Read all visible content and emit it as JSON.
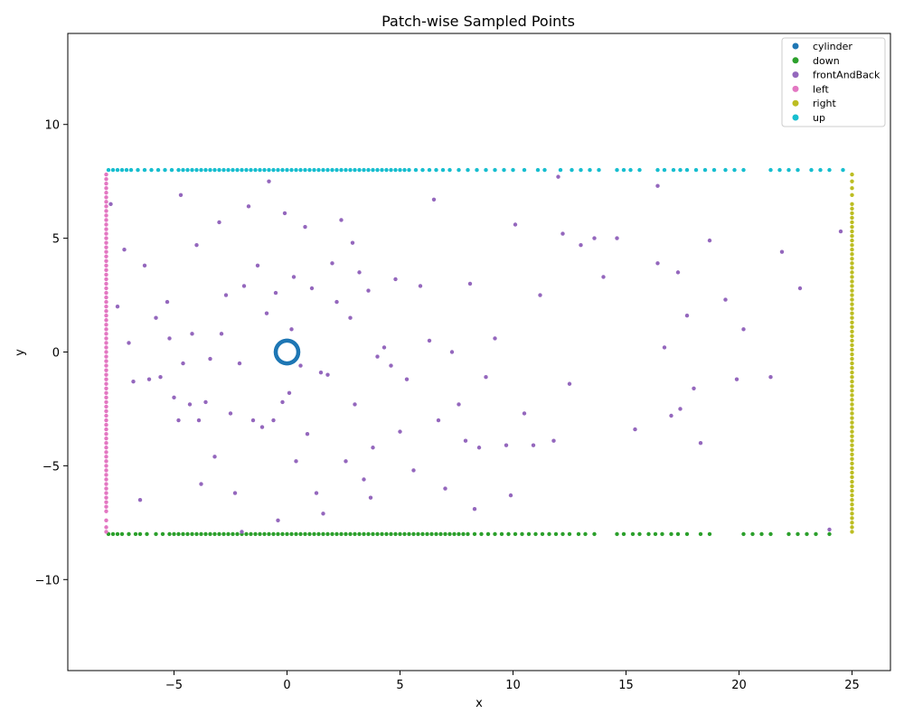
{
  "chart_data": {
    "type": "scatter",
    "title": "Patch-wise Sampled Points",
    "xlabel": "x",
    "ylabel": "y",
    "xlim": [
      -9.7,
      26.7
    ],
    "ylim": [
      -14.0,
      14.0
    ],
    "xticks": [
      -5,
      0,
      5,
      10,
      15,
      20,
      25
    ],
    "yticks": [
      -10,
      -5,
      0,
      5,
      10
    ],
    "grid": false,
    "legend": "top-right",
    "domain_box": {
      "x_min": -8,
      "x_max": 25,
      "y_min": -8,
      "y_max": 8
    },
    "series": [
      {
        "name": "cylinder",
        "color": "#1f77b4",
        "shape": "circle",
        "center": [
          0,
          0
        ],
        "radius": 0.5,
        "count": 120
      },
      {
        "name": "down",
        "color": "#2ca02c",
        "shape": "line",
        "y": -8,
        "x_range": [
          -8,
          24
        ],
        "x": [
          -7.9,
          -7.7,
          -7.5,
          -7.3,
          -7.0,
          -6.7,
          -6.5,
          -6.2,
          -5.8,
          -5.5,
          -5.2,
          -5.0,
          -4.8,
          -4.6,
          -4.4,
          -4.2,
          -4.0,
          -3.8,
          -3.6,
          -3.4,
          -3.2,
          -3.0,
          -2.8,
          -2.6,
          -2.4,
          -2.2,
          -2.0,
          -1.8,
          -1.6,
          -1.4,
          -1.2,
          -1.0,
          -0.8,
          -0.6,
          -0.4,
          -0.2,
          0.0,
          0.2,
          0.4,
          0.6,
          0.8,
          1.0,
          1.2,
          1.4,
          1.6,
          1.8,
          2.0,
          2.2,
          2.4,
          2.6,
          2.8,
          3.0,
          3.2,
          3.4,
          3.6,
          3.8,
          4.0,
          4.2,
          4.4,
          4.6,
          4.8,
          5.0,
          5.2,
          5.4,
          5.6,
          5.8,
          6.0,
          6.2,
          6.4,
          6.6,
          6.8,
          7.0,
          7.2,
          7.4,
          7.6,
          7.8,
          8.0,
          8.3,
          8.6,
          8.9,
          9.2,
          9.5,
          9.8,
          10.1,
          10.4,
          10.7,
          11.0,
          11.3,
          11.6,
          11.9,
          12.2,
          12.5,
          12.9,
          13.2,
          13.6,
          14.6,
          14.9,
          15.3,
          15.6,
          16.0,
          16.3,
          16.6,
          17.0,
          17.3,
          17.7,
          18.3,
          18.7,
          20.2,
          20.6,
          21.0,
          21.4,
          22.2,
          22.6,
          23.0,
          23.4,
          24.0
        ]
      },
      {
        "name": "frontAndBack",
        "color": "#9467bd",
        "shape": "scatter",
        "points": [
          [
            -7.8,
            6.5
          ],
          [
            -7.5,
            2.0
          ],
          [
            -7.2,
            4.5
          ],
          [
            -7.0,
            0.4
          ],
          [
            -6.8,
            -1.3
          ],
          [
            -6.5,
            -6.5
          ],
          [
            -6.3,
            3.8
          ],
          [
            -6.1,
            -1.2
          ],
          [
            -5.8,
            1.5
          ],
          [
            -5.6,
            -1.1
          ],
          [
            -5.3,
            2.2
          ],
          [
            -5.2,
            0.6
          ],
          [
            -5.0,
            -2.0
          ],
          [
            -4.8,
            -3.0
          ],
          [
            -4.7,
            6.9
          ],
          [
            -4.6,
            -0.5
          ],
          [
            -4.3,
            -2.3
          ],
          [
            -4.2,
            0.8
          ],
          [
            -4.0,
            4.7
          ],
          [
            -3.9,
            -3.0
          ],
          [
            -3.8,
            -5.8
          ],
          [
            -3.6,
            -2.2
          ],
          [
            -3.4,
            -0.3
          ],
          [
            -3.2,
            -4.6
          ],
          [
            -3.0,
            5.7
          ],
          [
            -2.9,
            0.8
          ],
          [
            -2.7,
            2.5
          ],
          [
            -2.5,
            -2.7
          ],
          [
            -2.3,
            -6.2
          ],
          [
            -2.1,
            -0.5
          ],
          [
            -1.9,
            2.9
          ],
          [
            -1.7,
            6.4
          ],
          [
            -1.5,
            -3.0
          ],
          [
            -1.3,
            3.8
          ],
          [
            -1.1,
            -3.3
          ],
          [
            -0.9,
            1.7
          ],
          [
            -0.8,
            7.5
          ],
          [
            -0.6,
            -3.0
          ],
          [
            -0.5,
            2.6
          ],
          [
            -0.4,
            -7.4
          ],
          [
            -0.2,
            -2.2
          ],
          [
            -0.1,
            6.1
          ],
          [
            0.1,
            -1.8
          ],
          [
            0.3,
            3.3
          ],
          [
            0.4,
            -4.8
          ],
          [
            0.6,
            -0.6
          ],
          [
            0.8,
            5.5
          ],
          [
            0.9,
            -3.6
          ],
          [
            1.1,
            2.8
          ],
          [
            1.3,
            -6.2
          ],
          [
            1.5,
            -0.9
          ],
          [
            1.6,
            -7.1
          ],
          [
            1.8,
            -1.0
          ],
          [
            2.0,
            3.9
          ],
          [
            2.2,
            2.2
          ],
          [
            2.4,
            5.8
          ],
          [
            2.6,
            -4.8
          ],
          [
            2.8,
            1.5
          ],
          [
            3.0,
            -2.3
          ],
          [
            3.2,
            3.5
          ],
          [
            3.4,
            -5.6
          ],
          [
            3.6,
            2.7
          ],
          [
            3.8,
            -4.2
          ],
          [
            4.0,
            -0.2
          ],
          [
            4.3,
            0.2
          ],
          [
            4.6,
            -0.6
          ],
          [
            4.8,
            3.2
          ],
          [
            5.0,
            -3.5
          ],
          [
            5.3,
            -1.2
          ],
          [
            5.6,
            -5.2
          ],
          [
            5.9,
            2.9
          ],
          [
            6.3,
            0.5
          ],
          [
            6.5,
            6.7
          ],
          [
            6.7,
            -3.0
          ],
          [
            7.0,
            -6.0
          ],
          [
            7.3,
            0.0
          ],
          [
            7.6,
            -2.3
          ],
          [
            7.9,
            -3.9
          ],
          [
            8.1,
            3.0
          ],
          [
            8.5,
            -4.2
          ],
          [
            8.8,
            -1.1
          ],
          [
            9.2,
            0.6
          ],
          [
            9.7,
            -4.1
          ],
          [
            10.1,
            5.6
          ],
          [
            10.5,
            -2.7
          ],
          [
            10.9,
            -4.1
          ],
          [
            11.2,
            2.5
          ],
          [
            11.8,
            -3.9
          ],
          [
            12.2,
            5.2
          ],
          [
            12.5,
            -1.4
          ],
          [
            13.0,
            4.7
          ],
          [
            13.6,
            5.0
          ],
          [
            14.0,
            3.3
          ],
          [
            14.6,
            5.0
          ],
          [
            15.4,
            -3.4
          ],
          [
            16.4,
            3.9
          ],
          [
            16.7,
            0.2
          ],
          [
            17.0,
            -2.8
          ],
          [
            17.3,
            3.5
          ],
          [
            17.7,
            1.6
          ],
          [
            18.0,
            -1.6
          ],
          [
            18.3,
            -4.0
          ],
          [
            18.7,
            4.9
          ],
          [
            19.4,
            2.3
          ],
          [
            19.9,
            -1.2
          ],
          [
            20.2,
            1.0
          ],
          [
            21.4,
            -1.1
          ],
          [
            21.9,
            4.4
          ],
          [
            22.7,
            2.8
          ],
          [
            24.0,
            -7.8
          ],
          [
            24.5,
            5.3
          ],
          [
            12.0,
            7.7
          ],
          [
            16.4,
            7.3
          ],
          [
            17.4,
            -2.5
          ],
          [
            9.9,
            -6.3
          ],
          [
            8.3,
            -6.9
          ],
          [
            2.9,
            4.8
          ],
          [
            -2.0,
            -7.9
          ],
          [
            3.7,
            -6.4
          ],
          [
            0.2,
            1.0
          ]
        ]
      },
      {
        "name": "left",
        "color": "#e377c2",
        "shape": "line",
        "x": -8,
        "y_range": [
          -8,
          8
        ],
        "y": [
          -7.9,
          -7.7,
          -7.4,
          -7.0,
          -6.8,
          -6.6,
          -6.4,
          -6.2,
          -6.0,
          -5.8,
          -5.6,
          -5.4,
          -5.2,
          -5.0,
          -4.8,
          -4.6,
          -4.4,
          -4.2,
          -4.0,
          -3.8,
          -3.6,
          -3.4,
          -3.2,
          -3.0,
          -2.8,
          -2.6,
          -2.4,
          -2.2,
          -2.0,
          -1.8,
          -1.6,
          -1.4,
          -1.2,
          -1.0,
          -0.8,
          -0.6,
          -0.4,
          -0.2,
          0.0,
          0.2,
          0.4,
          0.6,
          0.8,
          1.0,
          1.2,
          1.4,
          1.6,
          1.8,
          2.0,
          2.2,
          2.4,
          2.6,
          2.8,
          3.0,
          3.2,
          3.4,
          3.6,
          3.8,
          4.0,
          4.2,
          4.4,
          4.6,
          4.8,
          5.0,
          5.2,
          5.4,
          5.6,
          5.8,
          6.0,
          6.2,
          6.4,
          6.6,
          6.8,
          7.0,
          7.2,
          7.4,
          7.6,
          7.8
        ]
      },
      {
        "name": "right",
        "color": "#bcbd22",
        "shape": "line",
        "x": 25,
        "y_range": [
          -8,
          8
        ],
        "y": [
          -7.9,
          -7.7,
          -7.5,
          -7.3,
          -7.1,
          -6.9,
          -6.7,
          -6.5,
          -6.3,
          -6.1,
          -5.9,
          -5.7,
          -5.5,
          -5.3,
          -5.1,
          -4.9,
          -4.7,
          -4.5,
          -4.3,
          -4.1,
          -3.9,
          -3.7,
          -3.5,
          -3.3,
          -3.1,
          -2.9,
          -2.7,
          -2.5,
          -2.3,
          -2.1,
          -1.9,
          -1.7,
          -1.5,
          -1.3,
          -1.1,
          -0.9,
          -0.7,
          -0.5,
          -0.3,
          -0.1,
          0.1,
          0.3,
          0.5,
          0.7,
          0.9,
          1.1,
          1.3,
          1.5,
          1.7,
          1.9,
          2.1,
          2.3,
          2.5,
          2.7,
          2.9,
          3.1,
          3.3,
          3.5,
          3.7,
          3.9,
          4.1,
          4.3,
          4.5,
          4.7,
          4.9,
          5.1,
          5.3,
          5.5,
          5.7,
          5.9,
          6.1,
          6.3,
          6.5,
          6.9,
          7.2,
          7.5,
          7.8
        ]
      },
      {
        "name": "up",
        "color": "#17becf",
        "shape": "line",
        "y": 8,
        "x_range": [
          -8,
          25
        ],
        "x": [
          -7.9,
          -7.7,
          -7.5,
          -7.3,
          -7.1,
          -6.9,
          -6.6,
          -6.3,
          -6.0,
          -5.7,
          -5.4,
          -5.1,
          -4.8,
          -4.6,
          -4.4,
          -4.2,
          -4.0,
          -3.8,
          -3.6,
          -3.4,
          -3.2,
          -3.0,
          -2.8,
          -2.6,
          -2.4,
          -2.2,
          -2.0,
          -1.8,
          -1.6,
          -1.4,
          -1.2,
          -1.0,
          -0.8,
          -0.6,
          -0.4,
          -0.2,
          0.0,
          0.2,
          0.4,
          0.6,
          0.8,
          1.0,
          1.2,
          1.4,
          1.6,
          1.8,
          2.0,
          2.2,
          2.4,
          2.6,
          2.8,
          3.0,
          3.2,
          3.4,
          3.6,
          3.8,
          4.0,
          4.2,
          4.4,
          4.6,
          4.8,
          5.0,
          5.2,
          5.4,
          5.7,
          6.0,
          6.3,
          6.6,
          6.9,
          7.2,
          7.6,
          8.0,
          8.4,
          8.8,
          9.2,
          9.6,
          10.0,
          10.5,
          11.1,
          11.4,
          12.1,
          12.6,
          13.0,
          13.4,
          13.8,
          14.6,
          14.9,
          15.2,
          15.6,
          16.4,
          16.7,
          17.1,
          17.4,
          17.7,
          18.1,
          18.5,
          18.9,
          19.4,
          19.8,
          20.2,
          21.4,
          21.8,
          22.2,
          22.6,
          23.2,
          23.6,
          24.0,
          24.6
        ]
      }
    ]
  }
}
